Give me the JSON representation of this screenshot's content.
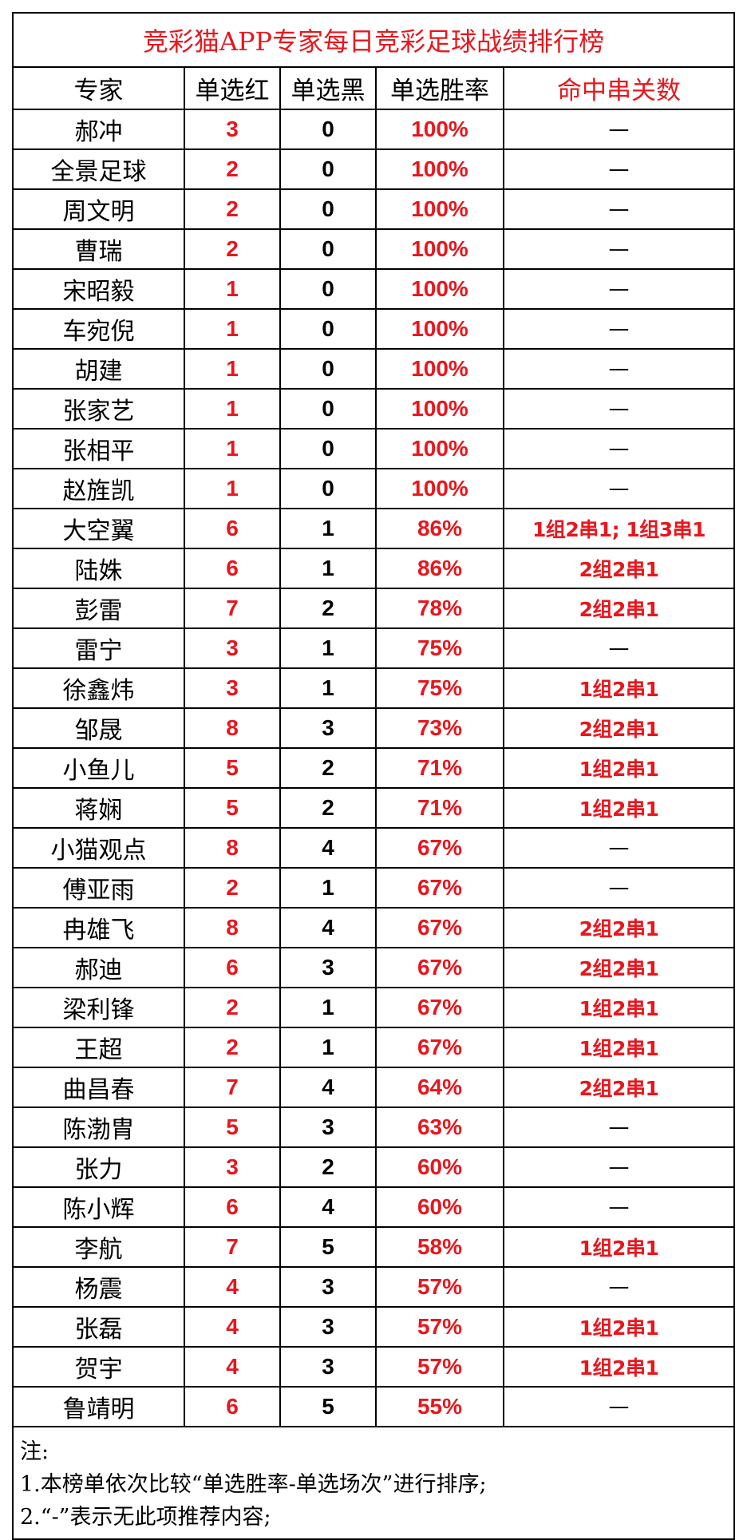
{
  "title": "竞彩猫APP专家每日竞彩足球战绩排行榜",
  "headers": [
    "专家",
    "单选红",
    "单选黑",
    "单选胜率",
    "命中串关数"
  ],
  "rows": [
    {
      "name": "郝冲",
      "red": "3",
      "black": "0",
      "rate": "100%",
      "combo": "—"
    },
    {
      "name": "全景足球",
      "red": "2",
      "black": "0",
      "rate": "100%",
      "combo": "—"
    },
    {
      "name": "周文明",
      "red": "2",
      "black": "0",
      "rate": "100%",
      "combo": "—"
    },
    {
      "name": "曹瑞",
      "red": "2",
      "black": "0",
      "rate": "100%",
      "combo": "—"
    },
    {
      "name": "宋昭毅",
      "red": "1",
      "black": "0",
      "rate": "100%",
      "combo": "—"
    },
    {
      "name": "车宛倪",
      "red": "1",
      "black": "0",
      "rate": "100%",
      "combo": "—"
    },
    {
      "name": "胡建",
      "red": "1",
      "black": "0",
      "rate": "100%",
      "combo": "—"
    },
    {
      "name": "张家艺",
      "red": "1",
      "black": "0",
      "rate": "100%",
      "combo": "—"
    },
    {
      "name": "张相平",
      "red": "1",
      "black": "0",
      "rate": "100%",
      "combo": "—"
    },
    {
      "name": "赵旌凯",
      "red": "1",
      "black": "0",
      "rate": "100%",
      "combo": "—"
    },
    {
      "name": "大空翼",
      "red": "6",
      "black": "1",
      "rate": "86%",
      "combo": "1组2串1; 1组3串1"
    },
    {
      "name": "陆姝",
      "red": "6",
      "black": "1",
      "rate": "86%",
      "combo": "2组2串1"
    },
    {
      "name": "彭雷",
      "red": "7",
      "black": "2",
      "rate": "78%",
      "combo": "2组2串1"
    },
    {
      "name": "雷宁",
      "red": "3",
      "black": "1",
      "rate": "75%",
      "combo": "—"
    },
    {
      "name": "徐鑫炜",
      "red": "3",
      "black": "1",
      "rate": "75%",
      "combo": "1组2串1"
    },
    {
      "name": "邹晟",
      "red": "8",
      "black": "3",
      "rate": "73%",
      "combo": "2组2串1"
    },
    {
      "name": "小鱼儿",
      "red": "5",
      "black": "2",
      "rate": "71%",
      "combo": "1组2串1"
    },
    {
      "name": "蒋娴",
      "red": "5",
      "black": "2",
      "rate": "71%",
      "combo": "1组2串1"
    },
    {
      "name": "小猫观点",
      "red": "8",
      "black": "4",
      "rate": "67%",
      "combo": "—"
    },
    {
      "name": "傅亚雨",
      "red": "2",
      "black": "1",
      "rate": "67%",
      "combo": "—"
    },
    {
      "name": "冉雄飞",
      "red": "8",
      "black": "4",
      "rate": "67%",
      "combo": "2组2串1"
    },
    {
      "name": "郝迪",
      "red": "6",
      "black": "3",
      "rate": "67%",
      "combo": "2组2串1"
    },
    {
      "name": "梁利锋",
      "red": "2",
      "black": "1",
      "rate": "67%",
      "combo": "1组2串1"
    },
    {
      "name": "王超",
      "red": "2",
      "black": "1",
      "rate": "67%",
      "combo": "1组2串1"
    },
    {
      "name": "曲昌春",
      "red": "7",
      "black": "4",
      "rate": "64%",
      "combo": "2组2串1"
    },
    {
      "name": "陈渤胄",
      "red": "5",
      "black": "3",
      "rate": "63%",
      "combo": "—"
    },
    {
      "name": "张力",
      "red": "3",
      "black": "2",
      "rate": "60%",
      "combo": "—"
    },
    {
      "name": "陈小辉",
      "red": "6",
      "black": "4",
      "rate": "60%",
      "combo": "—"
    },
    {
      "name": "李航",
      "red": "7",
      "black": "5",
      "rate": "58%",
      "combo": "1组2串1"
    },
    {
      "name": "杨震",
      "red": "4",
      "black": "3",
      "rate": "57%",
      "combo": "—"
    },
    {
      "name": "张磊",
      "red": "4",
      "black": "3",
      "rate": "57%",
      "combo": "1组2串1"
    },
    {
      "name": "贺宇",
      "red": "4",
      "black": "3",
      "rate": "57%",
      "combo": "1组2串1"
    },
    {
      "name": "鲁靖明",
      "red": "6",
      "black": "5",
      "rate": "55%",
      "combo": "—"
    }
  ],
  "notes": [
    "注:",
    "1.本榜单依次比较“单选胜率-单选场次”进行排序;",
    "2.“-”表示无此项推荐内容;"
  ],
  "colors": {
    "accent": "#e8161d",
    "text": "#000000"
  }
}
